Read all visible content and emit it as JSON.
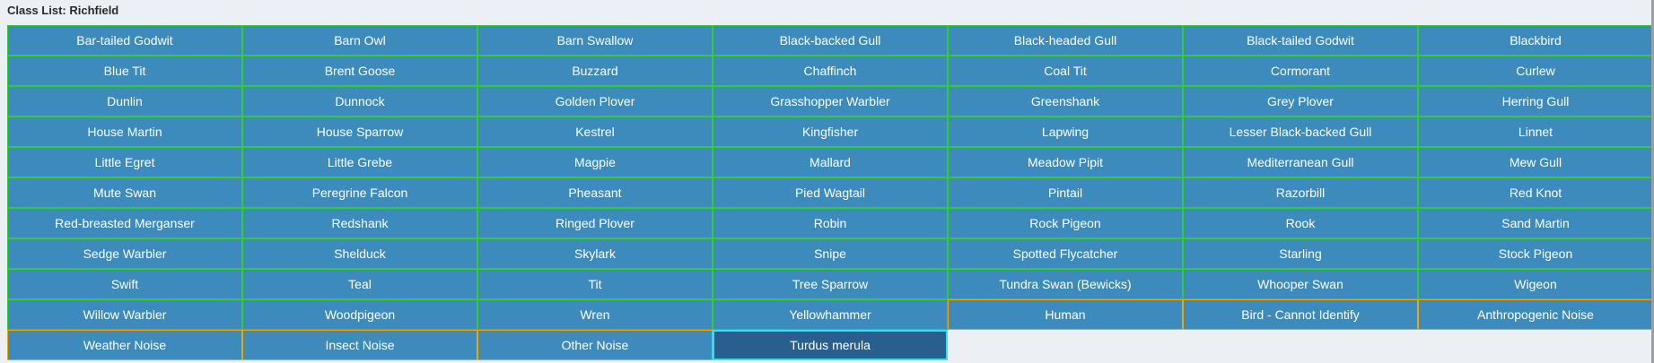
{
  "title": "Class List: Richfield",
  "colors": {
    "cell_bg": "#3d8bbd",
    "species_border": "#33cc33",
    "other_border": "#f0a500",
    "selected_bg": "#285f8f",
    "selected_border": "#33e0f0"
  },
  "classes": [
    {
      "label": "Bar-tailed Godwit",
      "kind": "species"
    },
    {
      "label": "Barn Owl",
      "kind": "species"
    },
    {
      "label": "Barn Swallow",
      "kind": "species"
    },
    {
      "label": "Black-backed Gull",
      "kind": "species"
    },
    {
      "label": "Black-headed Gull",
      "kind": "species"
    },
    {
      "label": "Black-tailed Godwit",
      "kind": "species"
    },
    {
      "label": "Blackbird",
      "kind": "species"
    },
    {
      "label": "Blue Tit",
      "kind": "species"
    },
    {
      "label": "Brent Goose",
      "kind": "species"
    },
    {
      "label": "Buzzard",
      "kind": "species"
    },
    {
      "label": "Chaffinch",
      "kind": "species"
    },
    {
      "label": "Coal Tit",
      "kind": "species"
    },
    {
      "label": "Cormorant",
      "kind": "species"
    },
    {
      "label": "Curlew",
      "kind": "species"
    },
    {
      "label": "Dunlin",
      "kind": "species"
    },
    {
      "label": "Dunnock",
      "kind": "species"
    },
    {
      "label": "Golden Plover",
      "kind": "species"
    },
    {
      "label": "Grasshopper Warbler",
      "kind": "species"
    },
    {
      "label": "Greenshank",
      "kind": "species"
    },
    {
      "label": "Grey Plover",
      "kind": "species"
    },
    {
      "label": "Herring Gull",
      "kind": "species"
    },
    {
      "label": "House Martin",
      "kind": "species"
    },
    {
      "label": "House Sparrow",
      "kind": "species"
    },
    {
      "label": "Kestrel",
      "kind": "species"
    },
    {
      "label": "Kingfisher",
      "kind": "species"
    },
    {
      "label": "Lapwing",
      "kind": "species"
    },
    {
      "label": "Lesser Black-backed Gull",
      "kind": "species"
    },
    {
      "label": "Linnet",
      "kind": "species"
    },
    {
      "label": "Little Egret",
      "kind": "species"
    },
    {
      "label": "Little Grebe",
      "kind": "species"
    },
    {
      "label": "Magpie",
      "kind": "species"
    },
    {
      "label": "Mallard",
      "kind": "species"
    },
    {
      "label": "Meadow Pipit",
      "kind": "species"
    },
    {
      "label": "Mediterranean Gull",
      "kind": "species"
    },
    {
      "label": "Mew Gull",
      "kind": "species"
    },
    {
      "label": "Mute Swan",
      "kind": "species"
    },
    {
      "label": "Peregrine Falcon",
      "kind": "species"
    },
    {
      "label": "Pheasant",
      "kind": "species"
    },
    {
      "label": "Pied Wagtail",
      "kind": "species"
    },
    {
      "label": "Pintail",
      "kind": "species"
    },
    {
      "label": "Razorbill",
      "kind": "species"
    },
    {
      "label": "Red Knot",
      "kind": "species"
    },
    {
      "label": "Red-breasted Merganser",
      "kind": "species"
    },
    {
      "label": "Redshank",
      "kind": "species"
    },
    {
      "label": "Ringed Plover",
      "kind": "species"
    },
    {
      "label": "Robin",
      "kind": "species"
    },
    {
      "label": "Rock Pigeon",
      "kind": "species"
    },
    {
      "label": "Rook",
      "kind": "species"
    },
    {
      "label": "Sand Martin",
      "kind": "species"
    },
    {
      "label": "Sedge Warbler",
      "kind": "species"
    },
    {
      "label": "Shelduck",
      "kind": "species"
    },
    {
      "label": "Skylark",
      "kind": "species"
    },
    {
      "label": "Snipe",
      "kind": "species"
    },
    {
      "label": "Spotted Flycatcher",
      "kind": "species"
    },
    {
      "label": "Starling",
      "kind": "species"
    },
    {
      "label": "Stock Pigeon",
      "kind": "species"
    },
    {
      "label": "Swift",
      "kind": "species"
    },
    {
      "label": "Teal",
      "kind": "species"
    },
    {
      "label": "Tit",
      "kind": "species"
    },
    {
      "label": "Tree Sparrow",
      "kind": "species"
    },
    {
      "label": "Tundra Swan (Bewicks)",
      "kind": "species"
    },
    {
      "label": "Whooper Swan",
      "kind": "species"
    },
    {
      "label": "Wigeon",
      "kind": "species"
    },
    {
      "label": "Willow Warbler",
      "kind": "species"
    },
    {
      "label": "Woodpigeon",
      "kind": "species"
    },
    {
      "label": "Wren",
      "kind": "species"
    },
    {
      "label": "Yellowhammer",
      "kind": "species"
    },
    {
      "label": "Human",
      "kind": "other"
    },
    {
      "label": "Bird - Cannot Identify",
      "kind": "other"
    },
    {
      "label": "Anthropogenic Noise",
      "kind": "other"
    },
    {
      "label": "Weather Noise",
      "kind": "other"
    },
    {
      "label": "Insect Noise",
      "kind": "other"
    },
    {
      "label": "Other Noise",
      "kind": "other"
    },
    {
      "label": "Turdus merula",
      "kind": "selected"
    }
  ]
}
